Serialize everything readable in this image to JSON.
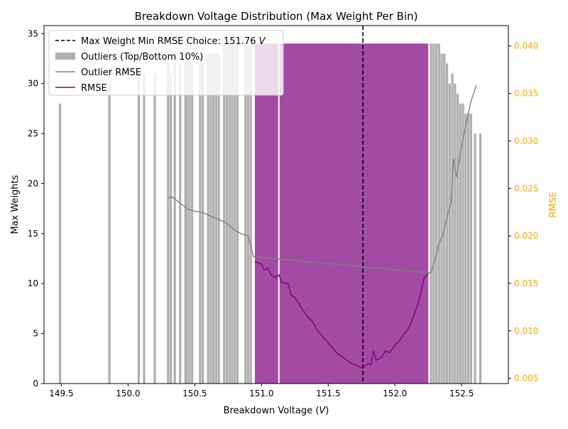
{
  "chart_data": {
    "type": "bar",
    "title": "Breakdown Voltage Distribution (Max Weight Per Bin)",
    "xlabel_text": "Breakdown Voltage (",
    "xlabel_unit": "V",
    "xlabel_close": ")",
    "ylabel": "Max Weights",
    "y2label": "RMSE",
    "xlim": [
      149.37,
      152.85
    ],
    "ylim": [
      0,
      35.8
    ],
    "y2lim": [
      0.00445,
      0.04215
    ],
    "x_ticks": [
      149.5,
      150.0,
      150.5,
      151.0,
      151.5,
      152.0,
      152.5
    ],
    "x_tick_labels": [
      "149.5",
      "150.0",
      "150.5",
      "151.0",
      "151.5",
      "152.0",
      "152.5"
    ],
    "y_ticks": [
      0,
      5,
      10,
      15,
      20,
      25,
      30,
      35
    ],
    "y_tick_labels": [
      "0",
      "5",
      "10",
      "15",
      "20",
      "25",
      "30",
      "35"
    ],
    "y2_ticks": [
      0.005,
      0.01,
      0.015,
      0.02,
      0.025,
      0.03,
      0.035,
      0.04
    ],
    "y2_tick_labels": [
      "0.005",
      "0.010",
      "0.015",
      "0.020",
      "0.025",
      "0.030",
      "0.035",
      "0.040"
    ],
    "grid": false,
    "legend_placement": "upper-left",
    "legend": {
      "vline_text": "Max Weight Min RMSE Choice: 151.76 ",
      "vline_unit": "V",
      "outliers": "Outliers (Top/Bottom 10%)",
      "outlier_rmse": "Outlier RMSE",
      "rmse": "RMSE"
    },
    "vline_x": 151.76,
    "bar_width": 0.0175,
    "outlier_color": "#b0b0b0",
    "main_color": "#a34aa3",
    "rmse_color": "#800080",
    "outlier_rmse_color": "#808080",
    "right_axis_color": "#ffa500",
    "outlier_bars": [
      [
        149.49,
        28
      ],
      [
        149.86,
        30
      ],
      [
        150.08,
        31
      ],
      [
        150.12,
        31
      ],
      [
        150.2,
        31
      ],
      [
        150.3,
        32
      ],
      [
        150.32,
        31
      ],
      [
        150.35,
        32
      ],
      [
        150.39,
        32
      ],
      [
        150.43,
        32
      ],
      [
        150.44,
        32
      ],
      [
        150.46,
        32
      ],
      [
        150.48,
        32
      ],
      [
        150.54,
        33
      ],
      [
        150.56,
        33
      ],
      [
        150.6,
        33
      ],
      [
        150.62,
        33
      ],
      [
        150.64,
        33
      ],
      [
        150.66,
        33
      ],
      [
        150.68,
        33
      ],
      [
        150.72,
        34
      ],
      [
        150.74,
        34
      ],
      [
        150.76,
        34
      ],
      [
        150.78,
        34
      ],
      [
        150.8,
        34
      ],
      [
        150.82,
        34
      ],
      [
        150.88,
        34
      ],
      [
        150.9,
        34
      ],
      [
        150.92,
        34
      ],
      [
        152.27,
        34
      ],
      [
        152.29,
        34
      ],
      [
        152.31,
        34
      ],
      [
        152.33,
        34
      ],
      [
        152.35,
        33
      ],
      [
        152.37,
        33
      ],
      [
        152.39,
        32
      ],
      [
        152.41,
        30
      ],
      [
        152.43,
        31
      ],
      [
        152.45,
        30
      ],
      [
        152.47,
        29
      ],
      [
        152.49,
        28
      ],
      [
        152.51,
        28
      ],
      [
        152.53,
        27
      ],
      [
        152.55,
        27
      ],
      [
        152.57,
        27
      ],
      [
        152.6,
        25
      ],
      [
        152.64,
        25
      ]
    ],
    "main_bars": {
      "x_start": 150.95,
      "x_end": 152.25,
      "value": 34,
      "gap_x": 151.13
    },
    "outlier_rmse": [
      [
        150.3,
        0.024
      ],
      [
        150.33,
        0.0241
      ],
      [
        150.45,
        0.0228
      ],
      [
        150.5,
        0.0226
      ],
      [
        150.55,
        0.0225
      ],
      [
        150.6,
        0.0222
      ],
      [
        150.65,
        0.0219
      ],
      [
        150.7,
        0.0216
      ],
      [
        150.74,
        0.0213
      ],
      [
        150.8,
        0.0206
      ],
      [
        150.85,
        0.0202
      ],
      [
        150.9,
        0.02
      ],
      [
        150.94,
        0.0178
      ],
      [
        152.27,
        0.0161
      ],
      [
        152.3,
        0.0175
      ],
      [
        152.33,
        0.0192
      ],
      [
        152.36,
        0.0201
      ],
      [
        152.39,
        0.022
      ],
      [
        152.42,
        0.0235
      ],
      [
        152.44,
        0.0281
      ],
      [
        152.46,
        0.0262
      ],
      [
        152.5,
        0.0295
      ],
      [
        152.54,
        0.0322
      ],
      [
        152.57,
        0.0342
      ],
      [
        152.59,
        0.035
      ],
      [
        152.61,
        0.0359
      ]
    ],
    "rmse": [
      [
        150.95,
        0.0173
      ],
      [
        151.0,
        0.017
      ],
      [
        151.02,
        0.0164
      ],
      [
        151.05,
        0.0166
      ],
      [
        151.07,
        0.0159
      ],
      [
        151.1,
        0.0156
      ],
      [
        151.13,
        0.0159
      ],
      [
        151.15,
        0.0151
      ],
      [
        151.2,
        0.015
      ],
      [
        151.22,
        0.0138
      ],
      [
        151.25,
        0.0135
      ],
      [
        151.28,
        0.0129
      ],
      [
        151.3,
        0.0124
      ],
      [
        151.35,
        0.0114
      ],
      [
        151.38,
        0.011
      ],
      [
        151.42,
        0.01
      ],
      [
        151.47,
        0.0092
      ],
      [
        151.52,
        0.0084
      ],
      [
        151.57,
        0.0076
      ],
      [
        151.62,
        0.0071
      ],
      [
        151.67,
        0.0066
      ],
      [
        151.72,
        0.0063
      ],
      [
        151.75,
        0.0061
      ],
      [
        151.78,
        0.0063
      ],
      [
        151.8,
        0.0066
      ],
      [
        151.82,
        0.0064
      ],
      [
        151.84,
        0.0079
      ],
      [
        151.86,
        0.0069
      ],
      [
        151.9,
        0.0072
      ],
      [
        151.93,
        0.0079
      ],
      [
        151.96,
        0.0077
      ],
      [
        152.0,
        0.0085
      ],
      [
        152.03,
        0.0089
      ],
      [
        152.06,
        0.0095
      ],
      [
        152.1,
        0.0102
      ],
      [
        152.14,
        0.0115
      ],
      [
        152.18,
        0.0132
      ],
      [
        152.22,
        0.0156
      ],
      [
        152.25,
        0.016
      ]
    ]
  }
}
